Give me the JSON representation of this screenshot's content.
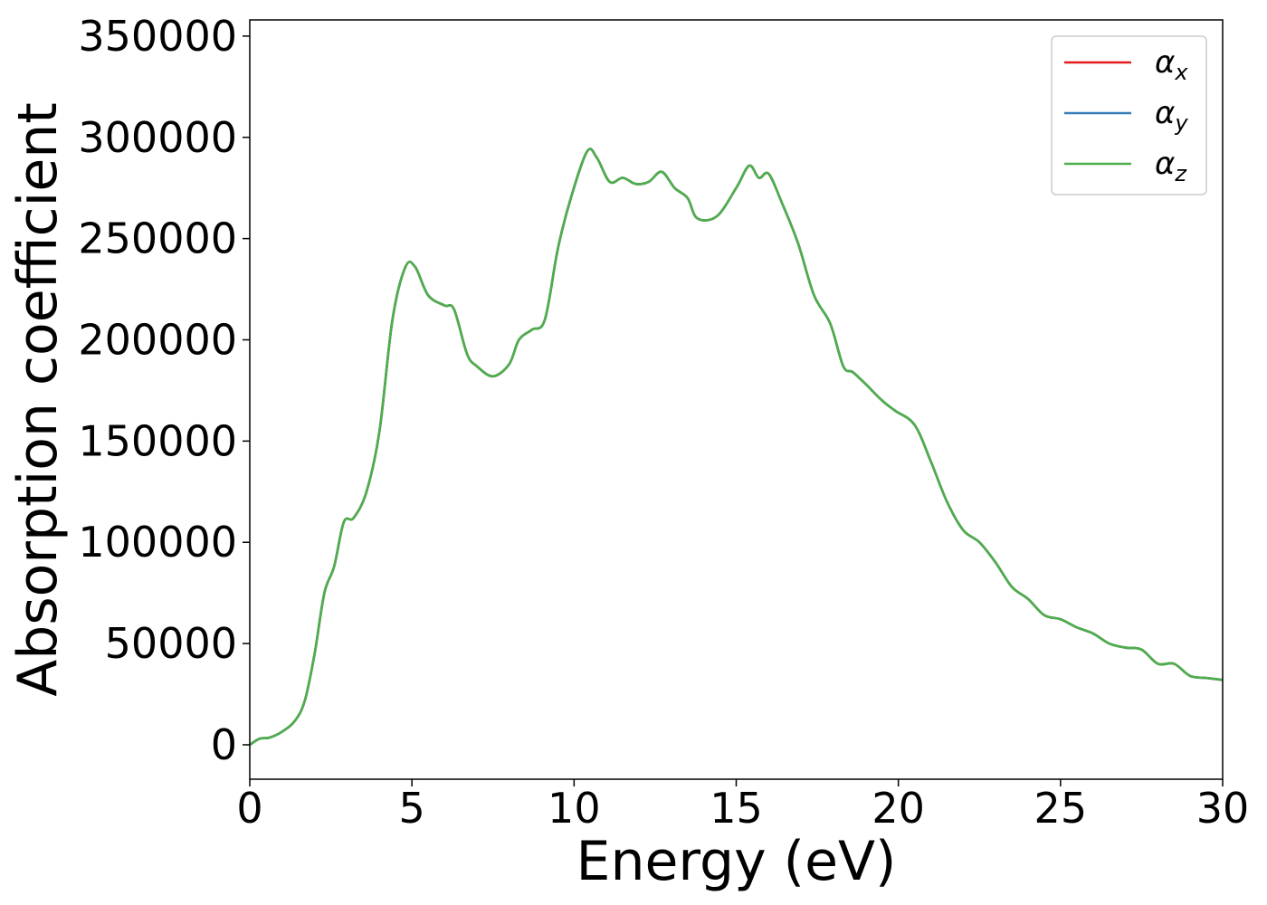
{
  "chart_data": {
    "type": "line",
    "xlabel": "Energy (eV)",
    "ylabel": "Absorption coefficient",
    "xlim": [
      0,
      30
    ],
    "ylim": [
      -17000,
      358000
    ],
    "xticks": [
      0,
      5,
      10,
      15,
      20,
      25,
      30
    ],
    "xtick_labels": [
      "0",
      "5",
      "10",
      "15",
      "20",
      "25",
      "30"
    ],
    "yticks": [
      0,
      50000,
      100000,
      150000,
      200000,
      250000,
      300000,
      350000
    ],
    "ytick_labels": [
      "0",
      "50000",
      "100000",
      "150000",
      "200000",
      "250000",
      "300000",
      "350000"
    ],
    "grid": false,
    "legend_position": "top-right",
    "x": [
      0,
      0.3,
      0.6,
      1.0,
      1.4,
      1.7,
      2.0,
      2.3,
      2.6,
      2.9,
      3.2,
      3.6,
      4.0,
      4.4,
      4.8,
      5.1,
      5.5,
      6.0,
      6.3,
      6.7,
      7.0,
      7.5,
      8.0,
      8.3,
      8.7,
      9.1,
      9.5,
      9.9,
      10.4,
      10.7,
      11.1,
      11.5,
      11.9,
      12.3,
      12.7,
      13.1,
      13.5,
      13.8,
      14.4,
      15.0,
      15.4,
      15.7,
      16.0,
      16.4,
      16.9,
      17.4,
      17.9,
      18.3,
      18.6,
      19.0,
      19.5,
      19.9,
      20.5,
      21.0,
      21.5,
      22.0,
      22.5,
      23.0,
      23.5,
      24.0,
      24.5,
      25.0,
      25.5,
      26.0,
      26.5,
      27.0,
      27.5,
      28.0,
      28.5,
      29.0,
      29.5,
      30.0
    ],
    "series": [
      {
        "name": "x",
        "color": "#e41a1c",
        "values": [
          0,
          3000,
          3500,
          6500,
          12000,
          22000,
          45000,
          75000,
          88000,
          110000,
          112000,
          125000,
          155000,
          210000,
          236000,
          236000,
          222000,
          217000,
          215000,
          193000,
          187000,
          182000,
          188000,
          200000,
          205000,
          210000,
          245000,
          270000,
          293000,
          290000,
          278000,
          280000,
          277000,
          278000,
          283000,
          275000,
          270000,
          260000,
          261000,
          275000,
          286000,
          280000,
          282000,
          268000,
          248000,
          222000,
          208000,
          187000,
          184000,
          178000,
          170000,
          165000,
          158000,
          140000,
          120000,
          106000,
          100000,
          90000,
          78000,
          72000,
          64000,
          62000,
          58000,
          55000,
          50000,
          48000,
          47000,
          40000,
          40000,
          34000,
          33000,
          32000
        ]
      },
      {
        "name": "y",
        "color": "#377eb8",
        "values": [
          0,
          3000,
          3500,
          6500,
          12000,
          22000,
          45000,
          75000,
          88000,
          110000,
          112000,
          125000,
          155000,
          210000,
          236000,
          236000,
          222000,
          217000,
          215000,
          193000,
          187000,
          182000,
          188000,
          200000,
          205000,
          210000,
          245000,
          270000,
          293000,
          290000,
          278000,
          280000,
          277000,
          278000,
          283000,
          275000,
          270000,
          260000,
          261000,
          275000,
          286000,
          280000,
          282000,
          268000,
          248000,
          222000,
          208000,
          187000,
          184000,
          178000,
          170000,
          165000,
          158000,
          140000,
          120000,
          106000,
          100000,
          90000,
          78000,
          72000,
          64000,
          62000,
          58000,
          55000,
          50000,
          48000,
          47000,
          40000,
          40000,
          34000,
          33000,
          32000
        ]
      },
      {
        "name": "z",
        "color": "#4daf4a",
        "values": [
          0,
          3000,
          3500,
          6500,
          12000,
          22000,
          45000,
          75000,
          88000,
          110000,
          112000,
          125000,
          155000,
          210000,
          236000,
          236000,
          222000,
          217000,
          215000,
          193000,
          187000,
          182000,
          188000,
          200000,
          205000,
          210000,
          245000,
          270000,
          293000,
          290000,
          278000,
          280000,
          277000,
          278000,
          283000,
          275000,
          270000,
          260000,
          261000,
          275000,
          286000,
          280000,
          282000,
          268000,
          248000,
          222000,
          208000,
          187000,
          184000,
          178000,
          170000,
          165000,
          158000,
          140000,
          120000,
          106000,
          100000,
          90000,
          78000,
          72000,
          64000,
          62000,
          58000,
          55000,
          50000,
          48000,
          47000,
          40000,
          40000,
          34000,
          33000,
          32000
        ]
      }
    ],
    "legend": [
      {
        "symbol": "α",
        "sub": "x",
        "color": "#e41a1c"
      },
      {
        "symbol": "α",
        "sub": "y",
        "color": "#377eb8"
      },
      {
        "symbol": "α",
        "sub": "z",
        "color": "#4daf4a"
      }
    ]
  }
}
